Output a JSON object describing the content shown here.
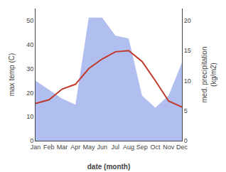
{
  "chart_data": {
    "type": "line",
    "categories": [
      "Jan",
      "Feb",
      "Mar",
      "Apr",
      "May",
      "Jun",
      "Jul",
      "Aug",
      "Sep",
      "Oct",
      "Nov",
      "Dec"
    ],
    "series": [
      {
        "type": "area",
        "axis": "y2",
        "color": "#b0bef0",
        "values": [
          10.0,
          8.5,
          7.0,
          6.0,
          20.5,
          20.5,
          17.5,
          17.0,
          7.5,
          5.5,
          7.5,
          13.0
        ]
      },
      {
        "type": "line",
        "color": "#c0392b",
        "values": [
          15.5,
          17.0,
          21.5,
          23.5,
          30.0,
          34.0,
          37.0,
          37.5,
          33.0,
          25.0,
          16.5,
          14.0
        ]
      }
    ],
    "xlabel": "date (month)",
    "ylabel": "max temp (C)",
    "y2label": "med. precipitation\n(kg/m2)",
    "ylim": [
      0,
      55
    ],
    "yticks": [
      0,
      10,
      20,
      30,
      40,
      50
    ],
    "y2lim": [
      0,
      22
    ],
    "y2ticks": [
      0,
      5,
      10,
      15,
      20
    ],
    "grid": false
  }
}
